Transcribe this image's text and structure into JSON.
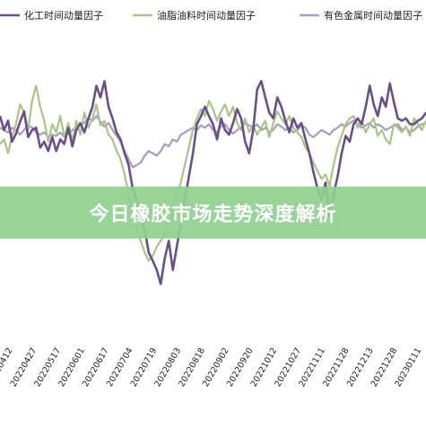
{
  "banner": {
    "text": "今日橡胶市场走势深度解析",
    "color": "#8fcf8f"
  },
  "chart_data": {
    "type": "line",
    "title": "",
    "xlabel": "",
    "ylabel": "",
    "grid": false,
    "legend_position": "top",
    "x_ticks": [
      "20220412",
      "20220427",
      "20220517",
      "20220601",
      "20220617",
      "20220704",
      "20220719",
      "20220803",
      "20220818",
      "20220902",
      "20220920",
      "20221012",
      "20221027",
      "20221111",
      "20221128",
      "20221213",
      "20221228",
      "20230111"
    ],
    "series": [
      {
        "name": "化工时间动量因子",
        "color": "#6a4f8a",
        "values": [
          0.62,
          0.5,
          0.58,
          0.4,
          0.47,
          0.57,
          0.66,
          0.44,
          0.5,
          0.52,
          0.35,
          0.4,
          0.32,
          0.44,
          0.32,
          0.42,
          0.38,
          0.52,
          0.36,
          0.5,
          0.56,
          0.48,
          0.6,
          0.7,
          0.88,
          0.78,
          0.92,
          0.7,
          0.6,
          0.48,
          0.42,
          0.3,
          0.2,
          0.0,
          -0.1,
          -0.25,
          -0.35,
          -0.55,
          -0.62,
          -0.7,
          -0.82,
          -0.6,
          -0.45,
          -0.7,
          -0.5,
          -0.3,
          -0.1,
          0.1,
          0.3,
          0.55,
          0.62,
          0.7,
          0.62,
          0.55,
          0.42,
          0.6,
          0.5,
          0.46,
          0.56,
          0.68,
          0.6,
          0.4,
          0.3,
          0.5,
          0.85,
          0.92,
          0.78,
          0.65,
          0.6,
          0.78,
          0.7,
          0.58,
          0.48,
          0.6,
          0.52,
          0.56,
          0.42,
          0.3,
          0.14,
          0.0,
          -0.1,
          0.05,
          -0.25,
          -0.05,
          0.1,
          0.3,
          0.45,
          0.4,
          0.55,
          0.6,
          0.55,
          0.7,
          0.88,
          0.72,
          0.62,
          0.78,
          0.7,
          0.9,
          0.74,
          0.6,
          0.58,
          0.6,
          0.55,
          0.55,
          0.58,
          0.6,
          0.65
        ]
      },
      {
        "name": "油脂油料时间动量因子",
        "color": "#a8c488",
        "values": [
          0.38,
          0.42,
          0.3,
          0.45,
          0.55,
          0.72,
          0.65,
          0.5,
          0.75,
          0.88,
          0.7,
          0.58,
          0.4,
          0.55,
          0.48,
          0.62,
          0.44,
          0.56,
          0.4,
          0.58,
          0.46,
          0.65,
          0.52,
          0.6,
          0.72,
          0.54,
          0.58,
          0.46,
          0.42,
          0.32,
          0.25,
          0.12,
          -0.05,
          -0.2,
          -0.35,
          -0.45,
          -0.55,
          -0.62,
          -0.58,
          -0.5,
          -0.45,
          -0.4,
          -0.3,
          -0.2,
          -0.05,
          0.05,
          0.2,
          0.35,
          0.5,
          0.6,
          0.68,
          0.62,
          0.75,
          0.68,
          0.58,
          0.66,
          0.72,
          0.62,
          0.7,
          0.56,
          0.5,
          0.6,
          0.48,
          0.54,
          0.46,
          0.52,
          0.58,
          0.44,
          0.56,
          0.66,
          0.6,
          0.55,
          0.62,
          0.52,
          0.48,
          0.44,
          0.35,
          0.3,
          0.22,
          0.15,
          0.08,
          0.12,
          0.02,
          0.2,
          0.35,
          0.45,
          0.55,
          0.6,
          0.62,
          0.52,
          0.58,
          0.48,
          0.55,
          0.6,
          0.45,
          0.5,
          0.42,
          0.38,
          0.55,
          0.52,
          0.48,
          0.53,
          0.45,
          0.6,
          0.55,
          0.5,
          0.58
        ]
      },
      {
        "name": "有色金属时间动量因子",
        "color": "#a89cbc",
        "values": [
          0.52,
          0.5,
          0.48,
          0.52,
          0.5,
          0.46,
          0.5,
          0.54,
          0.52,
          0.48,
          0.46,
          0.48,
          0.44,
          0.46,
          0.45,
          0.48,
          0.44,
          0.47,
          0.5,
          0.52,
          0.55,
          0.56,
          0.6,
          0.58,
          0.62,
          0.57,
          0.53,
          0.56,
          0.5,
          0.45,
          0.4,
          0.32,
          0.25,
          0.18,
          0.2,
          0.22,
          0.28,
          0.32,
          0.3,
          0.28,
          0.32,
          0.38,
          0.36,
          0.42,
          0.4,
          0.46,
          0.48,
          0.5,
          0.52,
          0.5,
          0.54,
          0.52,
          0.55,
          0.5,
          0.48,
          0.53,
          0.55,
          0.5,
          0.47,
          0.5,
          0.52,
          0.56,
          0.54,
          0.52,
          0.55,
          0.5,
          0.52,
          0.48,
          0.5,
          0.55,
          0.53,
          0.5,
          0.52,
          0.48,
          0.5,
          0.54,
          0.52,
          0.46,
          0.44,
          0.47,
          0.5,
          0.48,
          0.46,
          0.5,
          0.52,
          0.55,
          0.53,
          0.56,
          0.58,
          0.55,
          0.52,
          0.54,
          0.56,
          0.52,
          0.55,
          0.53,
          0.5,
          0.52,
          0.54,
          0.55,
          0.5,
          0.52,
          0.48,
          0.5,
          0.53,
          0.55,
          0.56
        ]
      }
    ]
  }
}
